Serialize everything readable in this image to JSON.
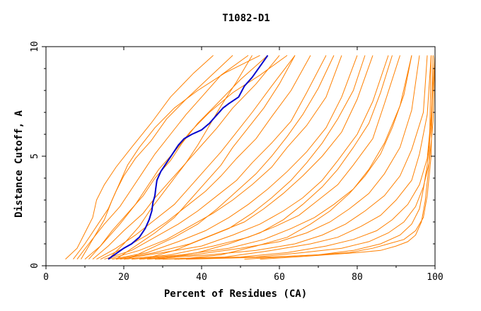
{
  "chart_data": {
    "type": "line",
    "title": "T1082-D1",
    "xlabel": "Percent of Residues (CA)",
    "ylabel": "Distance Cutoff, A",
    "xlim": [
      0,
      100
    ],
    "ylim": [
      0,
      10
    ],
    "x_ticks": [
      "0",
      "20",
      "40",
      "60",
      "80",
      "100"
    ],
    "y_ticks": [
      "0",
      "5",
      "10"
    ],
    "grid": false,
    "colors": {
      "models": "#ff8000",
      "highlight": "#0000cc",
      "axes": "#000000"
    },
    "highlight_series": {
      "x": [
        16,
        18,
        20,
        22,
        24,
        25.5,
        26.5,
        27.2,
        27.5,
        28,
        28.2,
        28.5,
        29.5,
        31,
        32.5,
        34,
        35.5,
        37.5,
        40,
        42,
        44,
        45.5,
        47,
        49.5,
        51,
        53,
        55,
        57
      ],
      "y": [
        0.3,
        0.55,
        0.8,
        1.0,
        1.3,
        1.7,
        2.1,
        2.5,
        2.9,
        3.2,
        3.5,
        3.9,
        4.3,
        4.7,
        5.1,
        5.5,
        5.8,
        6.0,
        6.2,
        6.5,
        6.9,
        7.2,
        7.4,
        7.7,
        8.2,
        8.6,
        9.1,
        9.6
      ]
    },
    "model_series": [
      {
        "x": [
          5,
          8,
          10,
          12,
          13,
          15,
          18,
          22,
          27,
          32,
          38,
          43
        ],
        "y": [
          0.3,
          0.8,
          1.5,
          2.2,
          3.0,
          3.7,
          4.5,
          5.4,
          6.5,
          7.7,
          8.8,
          9.6
        ]
      },
      {
        "x": [
          7,
          10,
          13,
          16,
          18,
          20,
          23,
          27,
          31,
          36,
          42,
          48
        ],
        "y": [
          0.3,
          1.0,
          1.8,
          2.6,
          3.4,
          4.1,
          4.9,
          5.7,
          6.7,
          7.6,
          8.6,
          9.6
        ]
      },
      {
        "x": [
          8,
          11,
          15,
          19,
          22,
          25,
          28,
          32,
          36,
          40,
          45,
          52
        ],
        "y": [
          0.3,
          1.0,
          1.9,
          2.7,
          3.5,
          4.3,
          5.1,
          6.0,
          6.9,
          7.7,
          8.7,
          9.6
        ]
      },
      {
        "x": [
          10,
          14,
          17,
          21,
          25,
          28,
          32,
          35,
          39,
          44,
          50,
          57
        ],
        "y": [
          0.3,
          0.9,
          1.6,
          2.4,
          3.2,
          4.0,
          4.8,
          5.6,
          6.5,
          7.4,
          8.5,
          9.6
        ]
      },
      {
        "x": [
          12,
          16,
          20,
          25,
          28,
          32,
          36,
          40,
          44,
          48,
          54,
          60
        ],
        "y": [
          0.3,
          0.9,
          1.6,
          2.4,
          3.1,
          3.9,
          4.7,
          5.5,
          6.3,
          7.2,
          8.3,
          9.6
        ]
      },
      {
        "x": [
          13,
          18,
          23,
          28,
          33,
          37,
          41,
          45,
          49,
          53,
          58,
          64
        ],
        "y": [
          0.3,
          0.8,
          1.4,
          2.1,
          2.8,
          3.6,
          4.4,
          5.2,
          6.1,
          7.0,
          8.2,
          9.6
        ]
      },
      {
        "x": [
          14,
          20,
          26,
          31,
          36,
          41,
          45,
          49,
          54,
          58,
          63,
          68
        ],
        "y": [
          0.3,
          0.8,
          1.4,
          2.0,
          2.7,
          3.4,
          4.1,
          4.9,
          5.8,
          6.8,
          8.0,
          9.6
        ]
      },
      {
        "x": [
          15,
          22,
          28,
          34,
          39,
          44,
          49,
          53,
          58,
          63,
          67,
          72
        ],
        "y": [
          0.3,
          0.7,
          1.3,
          1.9,
          2.5,
          3.2,
          3.9,
          4.7,
          5.6,
          6.6,
          7.9,
          9.6
        ]
      },
      {
        "x": [
          16,
          24,
          31,
          37,
          43,
          48,
          53,
          58,
          62,
          67,
          72,
          76
        ],
        "y": [
          0.3,
          0.7,
          1.2,
          1.8,
          2.4,
          3.0,
          3.7,
          4.5,
          5.4,
          6.4,
          7.7,
          9.6
        ]
      },
      {
        "x": [
          17,
          26,
          34,
          41,
          47,
          52,
          57,
          62,
          67,
          72,
          76,
          80
        ],
        "y": [
          0.3,
          0.6,
          1.1,
          1.6,
          2.2,
          2.8,
          3.5,
          4.3,
          5.2,
          6.3,
          7.7,
          9.6
        ]
      },
      {
        "x": [
          18,
          28,
          37,
          44,
          51,
          56,
          61,
          66,
          71,
          76,
          80,
          84
        ],
        "y": [
          0.3,
          0.6,
          1.0,
          1.5,
          2.0,
          2.6,
          3.3,
          4.1,
          5.0,
          6.1,
          7.6,
          9.6
        ]
      },
      {
        "x": [
          19,
          30,
          40,
          48,
          55,
          61,
          66,
          71,
          75,
          80,
          84,
          88
        ],
        "y": [
          0.3,
          0.6,
          0.9,
          1.4,
          1.9,
          2.5,
          3.1,
          3.9,
          4.8,
          6.0,
          7.5,
          9.6
        ]
      },
      {
        "x": [
          20,
          32,
          43,
          52,
          59,
          65,
          70,
          75,
          79,
          84,
          87,
          91
        ],
        "y": [
          0.3,
          0.5,
          0.9,
          1.3,
          1.8,
          2.3,
          3.0,
          3.7,
          4.6,
          5.8,
          7.4,
          9.6
        ]
      },
      {
        "x": [
          22,
          35,
          47,
          56,
          63,
          69,
          74,
          79,
          83,
          87,
          91,
          94
        ],
        "y": [
          0.3,
          0.5,
          0.8,
          1.2,
          1.7,
          2.2,
          2.8,
          3.5,
          4.4,
          5.6,
          7.3,
          9.6
        ]
      },
      {
        "x": [
          24,
          38,
          50,
          60,
          67,
          73,
          78,
          83,
          87,
          91,
          94,
          96
        ],
        "y": [
          0.3,
          0.5,
          0.8,
          1.1,
          1.5,
          2.0,
          2.6,
          3.3,
          4.2,
          5.4,
          7.1,
          9.6
        ]
      },
      {
        "x": [
          26,
          42,
          54,
          64,
          71,
          77,
          82,
          87,
          91,
          94,
          97,
          98
        ],
        "y": [
          0.3,
          0.5,
          0.7,
          1.0,
          1.4,
          1.9,
          2.5,
          3.2,
          4.1,
          5.3,
          7.0,
          9.6
        ]
      },
      {
        "x": [
          28,
          46,
          58,
          68,
          75,
          81,
          86,
          90,
          94,
          96,
          98,
          99
        ],
        "y": [
          0.3,
          0.4,
          0.7,
          1.0,
          1.3,
          1.8,
          2.3,
          3.0,
          3.9,
          5.1,
          6.9,
          9.6
        ]
      },
      {
        "x": [
          30,
          50,
          62,
          72,
          79,
          85,
          89,
          93,
          96,
          98,
          99,
          100
        ],
        "y": [
          0.3,
          0.4,
          0.6,
          0.9,
          1.2,
          1.6,
          2.1,
          2.8,
          3.7,
          4.9,
          6.8,
          9.6
        ]
      },
      {
        "x": [
          33,
          54,
          66,
          76,
          83,
          88,
          92,
          95,
          97,
          98.5,
          99.5,
          100
        ],
        "y": [
          0.3,
          0.4,
          0.6,
          0.8,
          1.1,
          1.5,
          2.0,
          2.7,
          3.6,
          4.7,
          6.6,
          9.6
        ]
      },
      {
        "x": [
          36,
          58,
          70,
          79,
          86,
          91,
          94,
          96,
          97,
          98,
          99,
          99.5
        ],
        "y": [
          0.3,
          0.4,
          0.5,
          0.7,
          1.0,
          1.4,
          1.9,
          2.6,
          3.5,
          4.6,
          6.4,
          9.6
        ]
      },
      {
        "x": [
          51,
          60,
          70,
          78,
          84,
          88,
          92,
          95,
          97,
          98,
          99,
          99.5
        ],
        "y": [
          0.3,
          0.4,
          0.5,
          0.6,
          0.8,
          1.0,
          1.2,
          1.6,
          2.2,
          3.2,
          5.0,
          9.6
        ]
      },
      {
        "x": [
          55,
          64,
          72,
          80,
          86,
          90,
          93,
          95,
          96.5,
          97.5,
          98.5,
          99
        ],
        "y": [
          0.3,
          0.4,
          0.5,
          0.6,
          0.7,
          0.9,
          1.1,
          1.4,
          2.0,
          3.0,
          4.7,
          9.6
        ]
      },
      {
        "x": [
          16,
          20,
          24,
          27,
          30,
          33,
          36,
          39,
          42,
          45,
          49,
          53
        ],
        "y": [
          0.3,
          1.0,
          1.8,
          2.6,
          3.3,
          4.0,
          4.7,
          5.5,
          6.4,
          7.3,
          8.4,
          9.6
        ]
      },
      {
        "x": [
          18,
          23,
          28,
          33,
          37,
          41,
          45,
          48,
          52,
          56,
          60,
          64
        ],
        "y": [
          0.3,
          0.9,
          1.5,
          2.2,
          3.0,
          3.8,
          4.6,
          5.4,
          6.3,
          7.2,
          8.3,
          9.6
        ]
      },
      {
        "x": [
          21,
          27,
          33,
          39,
          44,
          49,
          54,
          58,
          62,
          66,
          70,
          74
        ],
        "y": [
          0.3,
          0.8,
          1.3,
          1.9,
          2.6,
          3.4,
          4.2,
          5.0,
          5.9,
          6.9,
          8.1,
          9.6
        ]
      },
      {
        "x": [
          25,
          33,
          40,
          47,
          53,
          58,
          63,
          67,
          71,
          75,
          79,
          82
        ],
        "y": [
          0.3,
          0.7,
          1.2,
          1.7,
          2.4,
          3.1,
          3.9,
          4.7,
          5.6,
          6.7,
          8.0,
          9.6
        ]
      },
      {
        "x": [
          29,
          39,
          47,
          55,
          61,
          66,
          71,
          75,
          79,
          83,
          86,
          89
        ],
        "y": [
          0.3,
          0.6,
          1.0,
          1.5,
          2.1,
          2.8,
          3.6,
          4.4,
          5.4,
          6.5,
          7.9,
          9.6
        ]
      },
      {
        "x": [
          34,
          45,
          54,
          62,
          68,
          73,
          78,
          82,
          86,
          89,
          92,
          94
        ],
        "y": [
          0.3,
          0.5,
          0.9,
          1.3,
          1.9,
          2.5,
          3.3,
          4.1,
          5.1,
          6.3,
          7.8,
          9.6
        ]
      },
      {
        "x": [
          9,
          12,
          15,
          17,
          19,
          21,
          24,
          28,
          33,
          39,
          46,
          55
        ],
        "y": [
          0.3,
          1.2,
          2.1,
          3.0,
          3.8,
          4.6,
          5.4,
          6.3,
          7.2,
          8.0,
          8.8,
          9.6
        ]
      },
      {
        "x": [
          11,
          15,
          19,
          23,
          26,
          29,
          33,
          37,
          42,
          48,
          55,
          62
        ],
        "y": [
          0.3,
          1.1,
          1.9,
          2.8,
          3.6,
          4.4,
          5.2,
          6.1,
          7.0,
          7.9,
          8.7,
          9.6
        ]
      }
    ]
  }
}
